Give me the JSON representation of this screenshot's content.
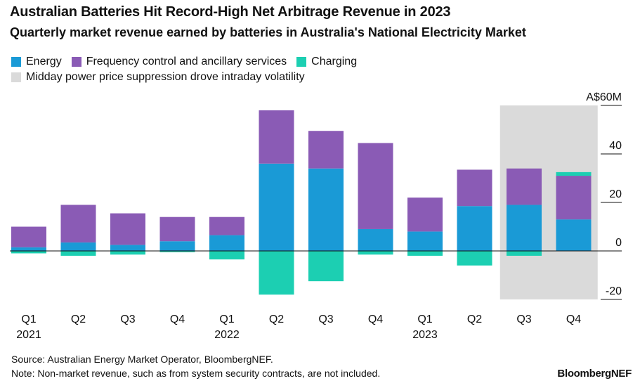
{
  "header": {
    "title": "Australian Batteries Hit Record-High Net Arbitrage Revenue in 2023",
    "subtitle": "Quarterly market revenue earned by batteries in Australia's National Electricity Market"
  },
  "legend": {
    "energy": "Energy",
    "fcas": "Frequency control and ancillary services",
    "charging": "Charging",
    "shade": "Midday power price suppression drove intraday volatility"
  },
  "colors": {
    "energy": "#1a9ad6",
    "fcas": "#8a5bb5",
    "charging": "#1ccfb2",
    "shade": "#dadada",
    "axis": "#111111"
  },
  "footer": {
    "source": "Source: Australian Energy Market Operator, BloombergNEF.",
    "note": "Note: Non-market revenue, such as from system security contracts, are not included.",
    "brand": "BloombergNEF"
  },
  "chart_data": {
    "type": "bar",
    "stacked": true,
    "title": "Australian Batteries Hit Record-High Net Arbitrage Revenue in 2023",
    "ylabel": "A$60M",
    "unit_label": "A$60M",
    "ylim": [
      -20,
      60
    ],
    "yticks": [
      -20,
      0,
      20,
      40,
      60
    ],
    "ytick_labels": [
      "-20",
      "0",
      "20",
      "40",
      "A$60M"
    ],
    "categories": [
      "Q1",
      "Q2",
      "Q3",
      "Q4",
      "Q1",
      "Q2",
      "Q3",
      "Q4",
      "Q1",
      "Q2",
      "Q3",
      "Q4"
    ],
    "year_labels": [
      {
        "index": 0,
        "label": "2021"
      },
      {
        "index": 4,
        "label": "2022"
      },
      {
        "index": 8,
        "label": "2023"
      }
    ],
    "shaded_range": [
      10,
      11
    ],
    "series": [
      {
        "name": "Energy",
        "key": "energy",
        "values": [
          1.5,
          3.5,
          2.5,
          4,
          6.5,
          36,
          34,
          9,
          8,
          18.5,
          19,
          13
        ]
      },
      {
        "name": "Frequency control and ancillary services",
        "key": "fcas",
        "values": [
          8.5,
          15.5,
          13,
          10,
          7.5,
          22,
          15.5,
          35.5,
          14,
          15,
          15,
          18
        ]
      },
      {
        "name": "Charging",
        "key": "charging",
        "values": [
          -1,
          -2,
          -1.5,
          -0.5,
          -3.5,
          -18,
          -12.5,
          -1.5,
          -2,
          -6,
          -2,
          1.5
        ]
      }
    ]
  }
}
